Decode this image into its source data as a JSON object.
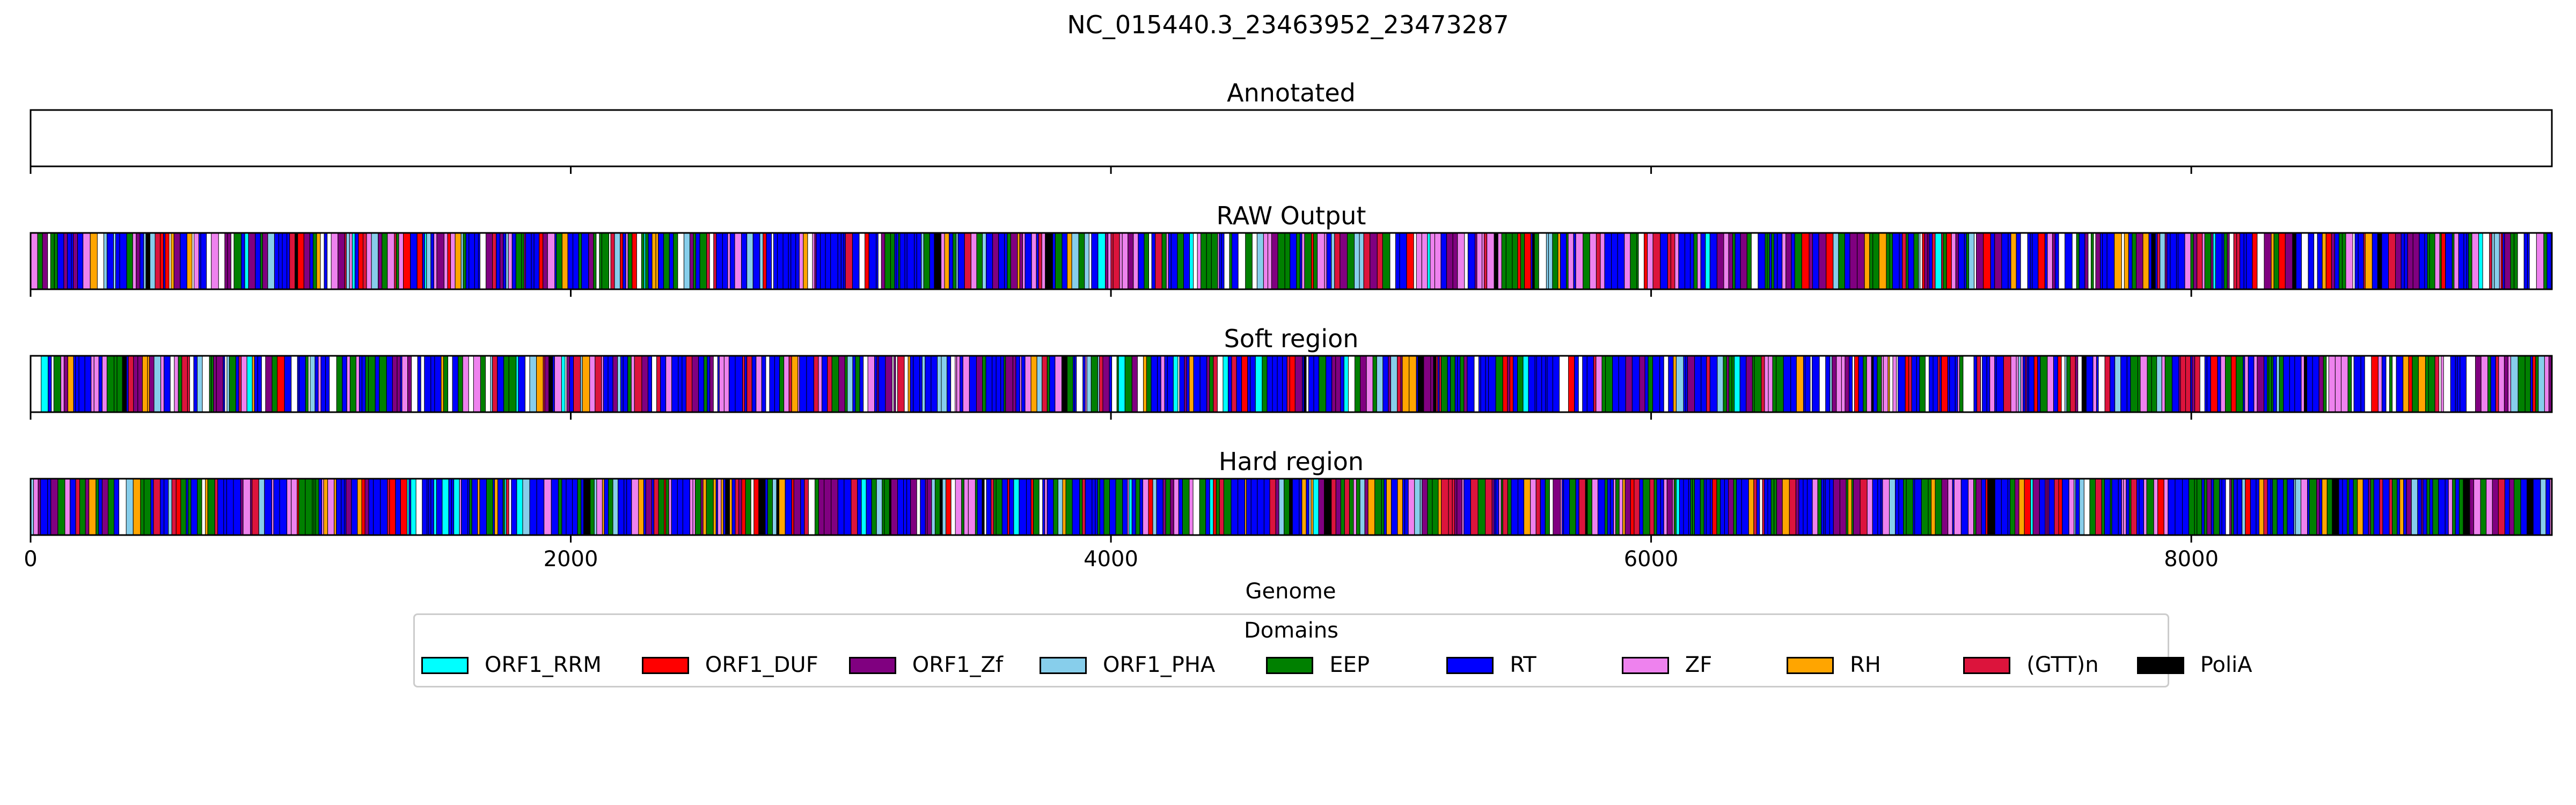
{
  "chart_data": {
    "type": "bar",
    "title": "NC_015440.3_23463952_23473287",
    "xlabel": "Genome",
    "xlim": [
      0,
      9335
    ],
    "x_ticks": [
      0,
      2000,
      4000,
      6000,
      8000
    ],
    "x_tick_labels": [
      "0",
      "2000",
      "4000",
      "6000",
      "8000"
    ],
    "panels": [
      {
        "title": "Annotated",
        "segments": []
      },
      {
        "title": "RAW Output",
        "mix": "raw",
        "segments": []
      },
      {
        "title": "Soft region",
        "mix": "soft",
        "segments": []
      },
      {
        "title": "Hard region",
        "mix": "hard",
        "segments": []
      }
    ],
    "legend": {
      "title": "Domains",
      "location": "bottom-center",
      "entries": [
        {
          "name": "ORF1_RRM",
          "color": "#00ffff"
        },
        {
          "name": "ORF1_DUF",
          "color": "#ff0000"
        },
        {
          "name": "ORF1_Zf",
          "color": "#800080"
        },
        {
          "name": "ORF1_PHA",
          "color": "#87ceeb"
        },
        {
          "name": "EEP",
          "color": "#008000"
        },
        {
          "name": "RT",
          "color": "#0000ff"
        },
        {
          "name": "ZF",
          "color": "#ee82ee"
        },
        {
          "name": "RH",
          "color": "#ffa500"
        },
        {
          "name": "(GTT)n",
          "color": "#dc143c"
        },
        {
          "name": "PoliA",
          "color": "#000000"
        }
      ]
    }
  }
}
